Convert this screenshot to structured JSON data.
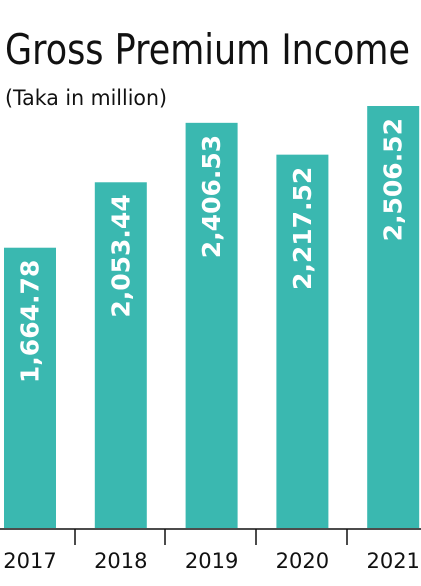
{
  "chart_data": {
    "type": "bar",
    "title": "Gross Premium Income",
    "subtitle": "(Taka in million)",
    "categories": [
      "2017",
      "2018",
      "2019",
      "2020",
      "2021"
    ],
    "values": [
      1664.78,
      2053.44,
      2406.53,
      2217.52,
      2506.52
    ],
    "value_labels": [
      "1,664.78",
      "2,053.44",
      "2,406.53",
      "2,217.52",
      "2,506.52"
    ],
    "color": "#3ab8b0"
  }
}
